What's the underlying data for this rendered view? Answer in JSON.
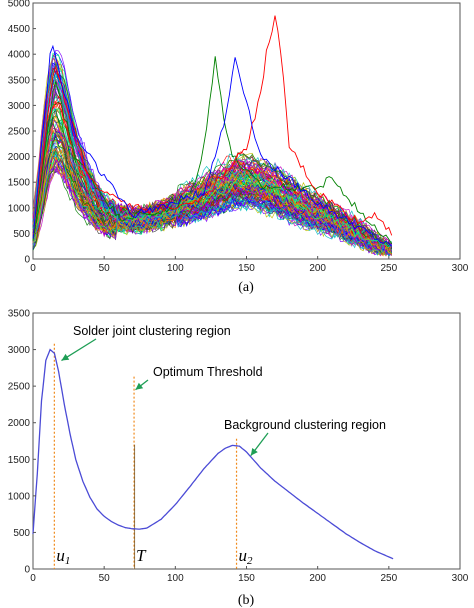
{
  "chart_data": [
    {
      "type": "line",
      "caption": "(a)",
      "xlim": [
        0,
        300
      ],
      "ylim": [
        0,
        5000
      ],
      "x_ticks": [
        "0",
        "50",
        "100",
        "150",
        "200",
        "250",
        "300"
      ],
      "y_ticks": [
        "0",
        "500",
        "1000",
        "1500",
        "2000",
        "2500",
        "3000",
        "3500",
        "4000",
        "4500",
        "5000"
      ],
      "grid": false,
      "series_count": 110,
      "x_range": [
        0,
        253
      ],
      "envelope": {
        "x": [
          0,
          5,
          10,
          15,
          20,
          30,
          40,
          50,
          60,
          70,
          80,
          90,
          100,
          110,
          120,
          130,
          140,
          150,
          160,
          170,
          180,
          190,
          200,
          210,
          220,
          230,
          240,
          253
        ],
        "mean": [
          450,
          1400,
          2600,
          3200,
          3000,
          2000,
          1350,
          950,
          800,
          760,
          790,
          860,
          960,
          1060,
          1170,
          1300,
          1450,
          1500,
          1420,
          1300,
          1150,
          1000,
          880,
          760,
          620,
          460,
          300,
          150
        ],
        "max_curve": [
          700,
          2600,
          3900,
          4250,
          3900,
          2700,
          1700,
          1300,
          1150,
          1050,
          1050,
          1150,
          1300,
          1450,
          1800,
          2500,
          3300,
          4000,
          3200,
          4700,
          2200,
          1700,
          1600,
          1450,
          1050,
          800,
          900,
          550
        ]
      }
    },
    {
      "type": "line",
      "caption": "(b)",
      "xlim": [
        0,
        300
      ],
      "ylim": [
        0,
        3500
      ],
      "x_ticks": [
        "0",
        "50",
        "100",
        "150",
        "200",
        "250",
        "300"
      ],
      "y_ticks": [
        "0",
        "500",
        "1000",
        "1500",
        "2000",
        "2500",
        "3000",
        "3500"
      ],
      "grid": false,
      "series": [
        {
          "x": [
            0,
            3,
            6,
            9,
            12,
            15,
            18,
            22,
            26,
            30,
            35,
            40,
            45,
            50,
            55,
            60,
            65,
            70,
            75,
            80,
            90,
            100,
            110,
            120,
            130,
            135,
            140,
            145,
            150,
            160,
            170,
            180,
            190,
            200,
            210,
            220,
            230,
            240,
            253
          ],
          "y": [
            480,
            1300,
            2300,
            2850,
            3000,
            2950,
            2700,
            2250,
            1850,
            1500,
            1200,
            980,
            820,
            720,
            650,
            600,
            565,
            550,
            545,
            560,
            680,
            880,
            1120,
            1370,
            1580,
            1650,
            1690,
            1680,
            1600,
            1380,
            1200,
            1050,
            900,
            760,
            620,
            480,
            360,
            250,
            140
          ]
        }
      ],
      "markers": [
        {
          "x": 15,
          "label": "u",
          "sub": "1"
        },
        {
          "x": 71,
          "label": "T",
          "sub": ""
        },
        {
          "x": 143,
          "label": "u",
          "sub": "2"
        }
      ],
      "annotations": [
        {
          "text": "Solder joint clustering region",
          "target_x": 20,
          "target_y": 2850
        },
        {
          "text": "Optimum Threshold",
          "target_x": 72,
          "target_y": 2450
        },
        {
          "text": "Background clustering region",
          "target_x": 153,
          "target_y": 1550
        }
      ]
    }
  ],
  "colors": {
    "axis": "#555555",
    "curve_b": "#4b4bd6",
    "marker_line": "#f08a1c",
    "annotation_arrow": "#1e9e55",
    "palette_a": [
      "#0000ff",
      "#008000",
      "#ff0000",
      "#00bfbf",
      "#bf00bf",
      "#bfbf00",
      "#404040",
      "#ff8000",
      "#8000ff",
      "#00ff80"
    ]
  }
}
